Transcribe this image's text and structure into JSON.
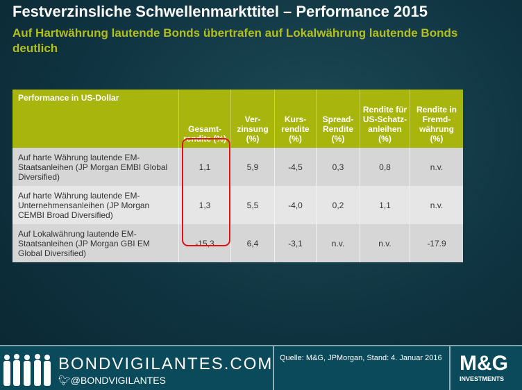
{
  "title": "Festverzinsliche Schwellenmarkttitel – Performance 2015",
  "subtitle": "Auf Hartwährung lautende Bonds übertrafen auf Lokalwährung lautende Bonds deutlich",
  "table": {
    "headers": [
      "Performance in US-Dollar",
      "Gesamt-rendite (%)",
      "Ver-zinsung (%)",
      "Kurs-rendite (%)",
      "Spread-Rendite (%)",
      "Rendite für US-Schatz-anleihen (%)",
      "Rendite in Fremd-währung (%)"
    ],
    "rows": [
      [
        "Auf harte Währung lautende EM-Staatsanleihen (JP Morgan EMBI Global Diversified)",
        "1,1",
        "5,9",
        "-4,5",
        "0,3",
        "0,8",
        "n.v."
      ],
      [
        "Auf harte Währung lautende EM-Unternehmensanleihen  (JP Morgan CEMBI Broad Diversified)",
        "1,3",
        "5,5",
        "-4,0",
        "0,2",
        "1,1",
        "n.v."
      ],
      [
        "Auf Lokalwährung lautende EM-Staatsanleihen (JP Morgan GBI EM Global Diversified)",
        "-15,3",
        "6,4",
        "-3,1",
        "n.v.",
        "n.v.",
        "-17.9"
      ]
    ]
  },
  "footer": {
    "site": "BONDVIGILANTES.COM",
    "twitter": "@BONDVIGILANTES",
    "source": "Quelle: M&G, JPMorgan,  Stand: 4. Januar 2016",
    "logo_top": "M&G",
    "logo_bottom": "INVESTMENTS"
  }
}
